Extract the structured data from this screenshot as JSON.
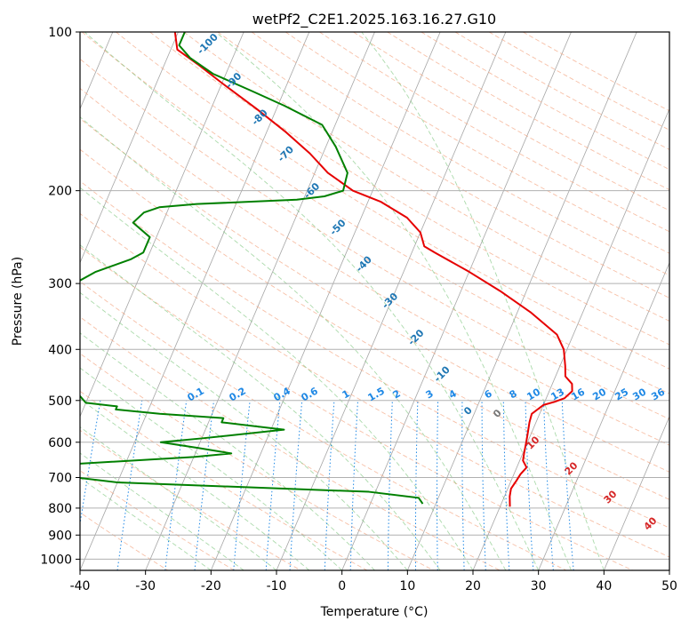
{
  "chart_data": {
    "type": "line",
    "title": "wetPf2_C2E1.2025.163.16.27.G10",
    "xlabel": "Temperature (°C)",
    "ylabel": "Pressure (hPa)",
    "xlim": [
      -40,
      50
    ],
    "ylim": [
      1050,
      100
    ],
    "y_scale": "log",
    "skew": true,
    "grid": "on",
    "xticks": [
      -40,
      -30,
      -20,
      -10,
      0,
      10,
      20,
      30,
      40,
      50
    ],
    "yticks": [
      1000,
      900,
      800,
      700,
      600,
      500,
      400,
      300,
      200,
      100
    ],
    "colors": {
      "temperature": "#e60000",
      "dewpoint": "#008000",
      "isotherm": "#888888",
      "dry_adiabat": "#f4a582",
      "moist_adiabat": "#66bb66",
      "mixing_ratio": "#1e88e5",
      "isotherm_label": "#1f77b4",
      "dry_adiabat_label": "#d62728",
      "zero_label": "#777777"
    },
    "series": [
      {
        "role": "temperature",
        "points": [
          [
            21.5,
            795
          ],
          [
            20.8,
            760
          ],
          [
            20.5,
            735
          ],
          [
            20.8,
            710
          ],
          [
            21.0,
            690
          ],
          [
            21.5,
            670
          ],
          [
            20.5,
            650
          ],
          [
            20.2,
            630
          ],
          [
            19.8,
            600
          ],
          [
            19.5,
            580
          ],
          [
            19.0,
            550
          ],
          [
            18.8,
            530
          ],
          [
            20.0,
            510
          ],
          [
            21.5,
            503
          ],
          [
            22.8,
            495
          ],
          [
            23.5,
            480
          ],
          [
            23.0,
            465
          ],
          [
            21.5,
            450
          ],
          [
            20.8,
            430
          ],
          [
            19.5,
            400
          ],
          [
            17.5,
            375
          ],
          [
            12.0,
            340
          ],
          [
            6.0,
            310
          ],
          [
            0.0,
            285
          ],
          [
            -6.5,
            262
          ],
          [
            -8.5,
            255
          ],
          [
            -10.0,
            240
          ],
          [
            -13.0,
            225
          ],
          [
            -18.0,
            210
          ],
          [
            -23.0,
            200
          ],
          [
            -28.0,
            185
          ],
          [
            -32.0,
            170
          ],
          [
            -37.0,
            155
          ],
          [
            -43.0,
            140
          ],
          [
            -50.0,
            125
          ],
          [
            -55.0,
            115
          ],
          [
            -59.0,
            108
          ],
          [
            -60.5,
            100
          ]
        ]
      },
      {
        "role": "dewpoint",
        "points": [
          [
            8.0,
            785
          ],
          [
            7.0,
            765
          ],
          [
            -1.0,
            745
          ],
          [
            -40.0,
            715
          ],
          [
            -52.0,
            688
          ],
          [
            -52.0,
            672
          ],
          [
            -48.0,
            660
          ],
          [
            -30.0,
            640
          ],
          [
            -24.5,
            630
          ],
          [
            -30.0,
            615
          ],
          [
            -36.0,
            600
          ],
          [
            -30.0,
            590
          ],
          [
            -18.0,
            568
          ],
          [
            -28.0,
            550
          ],
          [
            -28.0,
            540
          ],
          [
            -38.0,
            530
          ],
          [
            -45.0,
            520
          ],
          [
            -45.0,
            513
          ],
          [
            -50.0,
            505
          ],
          [
            -63.0,
            380
          ],
          [
            -66.0,
            355
          ],
          [
            -66.0,
            340
          ],
          [
            -63.5,
            320
          ],
          [
            -59.5,
            300
          ],
          [
            -57.0,
            285
          ],
          [
            -52.5,
            270
          ],
          [
            -51.0,
            262
          ],
          [
            -51.0,
            245
          ],
          [
            -54.5,
            230
          ],
          [
            -53.5,
            220
          ],
          [
            -51.5,
            215
          ],
          [
            -46.0,
            212
          ],
          [
            -31.0,
            208
          ],
          [
            -27.0,
            205
          ],
          [
            -24.5,
            200
          ],
          [
            -25.0,
            185
          ],
          [
            -28.5,
            165
          ],
          [
            -32.0,
            150
          ],
          [
            -39.0,
            138
          ],
          [
            -44.5,
            130
          ],
          [
            -52.0,
            120
          ],
          [
            -56.5,
            112
          ],
          [
            -59.0,
            106
          ],
          [
            -59.0,
            100
          ]
        ]
      }
    ],
    "isotherm_labels": [
      -100,
      -90,
      -80,
      -70,
      -60,
      -50,
      -40,
      -30,
      -20,
      -10,
      0
    ],
    "dry_adiabat_labels": [
      10,
      20,
      30,
      40
    ],
    "mixing_ratio_labels": [
      "0.1",
      "0.2",
      "0.4",
      "0.6",
      "1",
      "1.5",
      "2",
      "3",
      "4",
      "6",
      "8",
      "10",
      "13",
      "16",
      "20",
      "25",
      "30",
      "36"
    ]
  }
}
